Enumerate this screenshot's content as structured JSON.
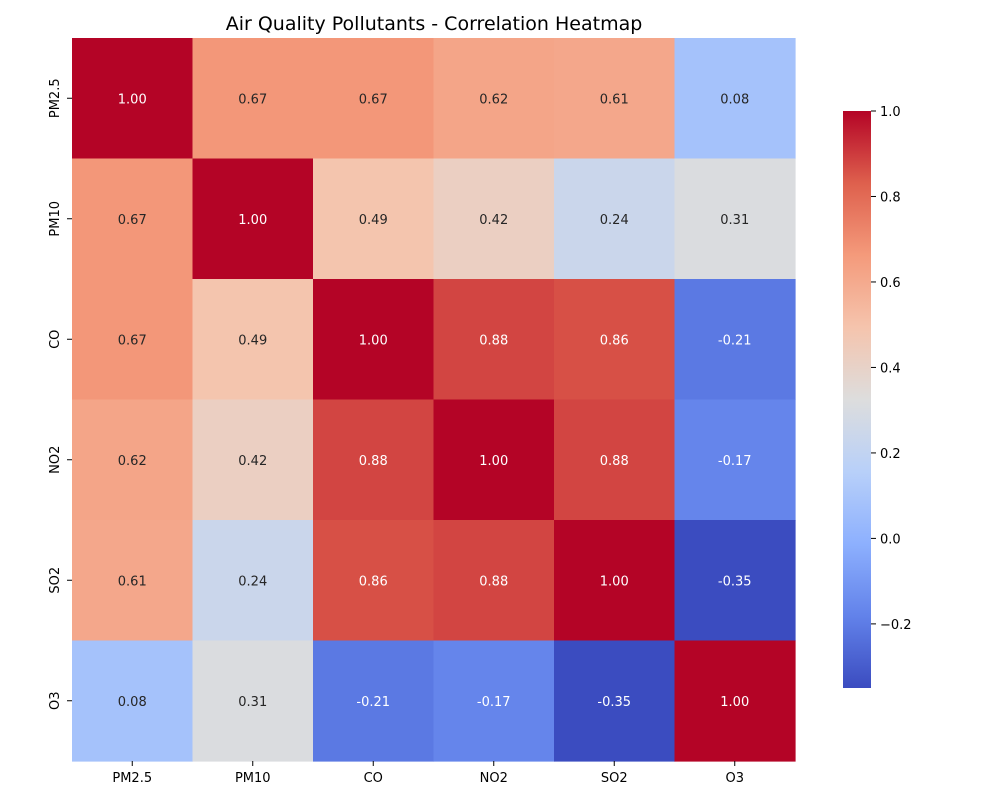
{
  "chart_data": {
    "type": "heatmap",
    "title": "Air Quality Pollutants - Correlation Heatmap",
    "x_labels": [
      "PM2.5",
      "PM10",
      "CO",
      "NO2",
      "SO2",
      "O3"
    ],
    "y_labels": [
      "PM2.5",
      "PM10",
      "CO",
      "NO2",
      "SO2",
      "O3"
    ],
    "values": [
      [
        1.0,
        0.67,
        0.67,
        0.62,
        0.61,
        0.08
      ],
      [
        0.67,
        1.0,
        0.49,
        0.42,
        0.24,
        0.31
      ],
      [
        0.67,
        0.49,
        1.0,
        0.88,
        0.86,
        -0.21
      ],
      [
        0.62,
        0.42,
        0.88,
        1.0,
        0.88,
        -0.17
      ],
      [
        0.61,
        0.24,
        0.86,
        0.88,
        1.0,
        -0.35
      ],
      [
        0.08,
        0.31,
        -0.21,
        -0.17,
        -0.35,
        1.0
      ]
    ],
    "value_format": "0.00",
    "colormap": "coolwarm",
    "colorbar": {
      "range": [
        -0.35,
        1.0
      ],
      "ticks": [
        -0.2,
        0.0,
        0.2,
        0.4,
        0.6,
        0.8,
        1.0
      ],
      "tick_labels": [
        "−0.2",
        "0.0",
        "0.2",
        "0.4",
        "0.6",
        "0.8",
        "1.0"
      ]
    }
  }
}
